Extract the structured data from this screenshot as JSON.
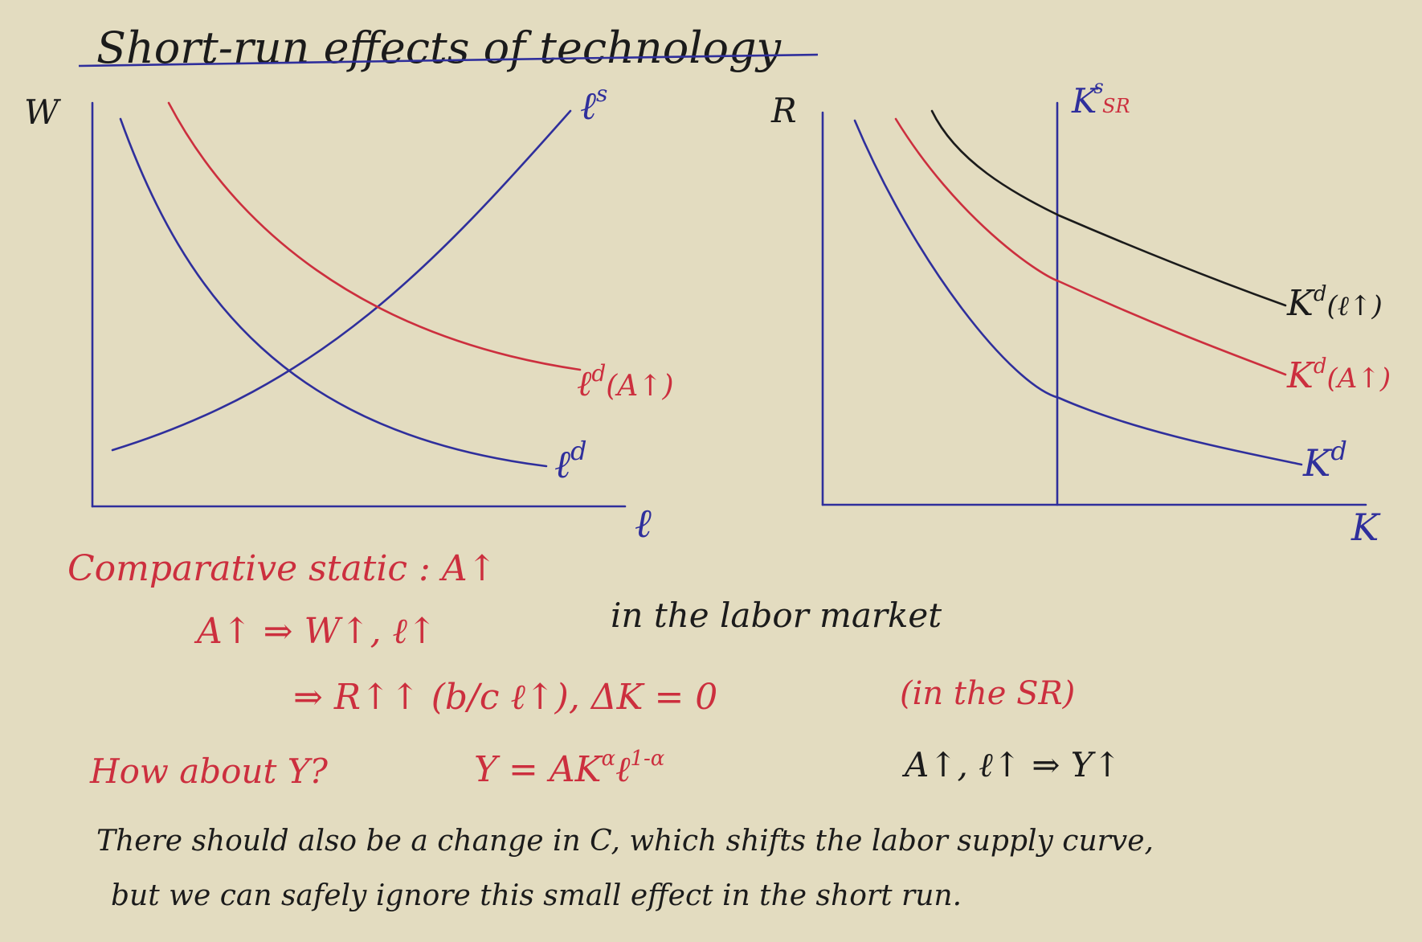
{
  "title": "Short-run effects of technology",
  "colors": {
    "paper": "#e3dcc0",
    "ink_blue": "#2f2f9c",
    "ink_red": "#cc2f3e",
    "ink_black": "#1b1b1b"
  },
  "labor_graph": {
    "y_axis": "W",
    "x_axis": "ℓ",
    "supply": "ℓ",
    "supply_sup": "s",
    "demand": "ℓ",
    "demand_sup": "d",
    "demand_new": "ℓ",
    "demand_new_sup": "d",
    "demand_new_tail": "(A↑)"
  },
  "capital_graph": {
    "y_axis": "R",
    "x_axis": "K",
    "supply": "K",
    "supply_sup": "s",
    "supply_sub": "SR",
    "demand": "K",
    "demand_sup": "d",
    "demand_tech": "K",
    "demand_tech_sup": "d",
    "demand_tech_tail": "(A↑)",
    "demand_labor": "K",
    "demand_labor_sup": "d",
    "demand_labor_tail": "(ℓ↑)"
  },
  "notes": {
    "line1": "Comparative static : A↑",
    "line2": "A↑ ⇒ W↑, ℓ↑",
    "line2b": "in the labor market",
    "line3": "⇒ R↑↑ (b/c ℓ↑), ΔK = 0",
    "line3b": "(in the SR)",
    "line4a": "How about Y?",
    "line4b": "Y = AK",
    "line4b_sup1": "α",
    "line4b_mid": "ℓ",
    "line4b_sup2": "1-α",
    "line4c": "A↑, ℓ↑ ⇒ Y↑",
    "line5": "There should also be a change in C, which shifts the labor supply curve,",
    "line6": "but we can safely ignore this small effect in the short run."
  }
}
